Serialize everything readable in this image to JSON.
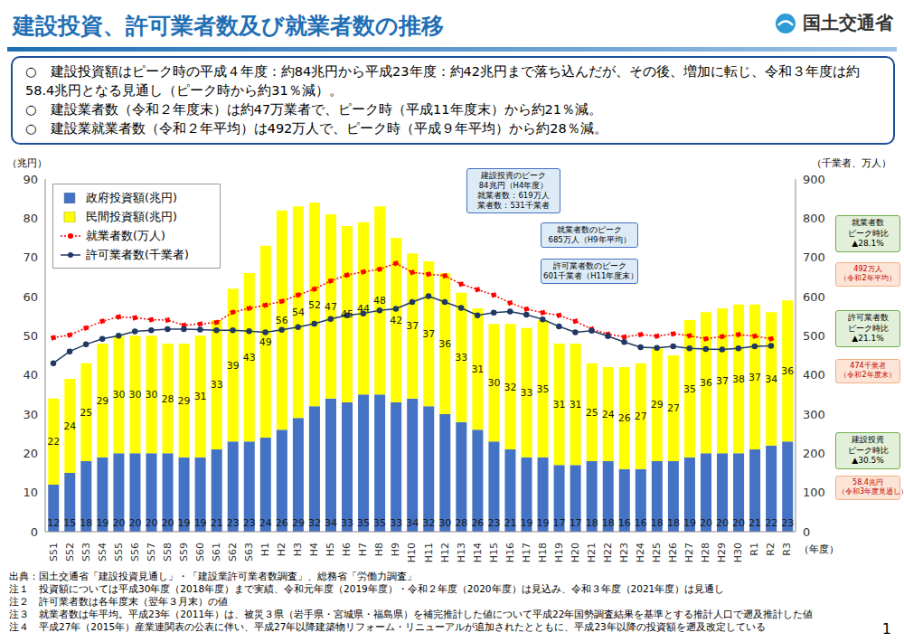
{
  "page": {
    "logo": "国土交通省",
    "summary": [
      "○　建設投資額はピーク時の平成４年度：約84兆円から平成23年度：約42兆円まで落ち込んだが、その後、増加に転じ、令和３年度は約58.4兆円となる見通し（ピーク時から約31％減）。",
      "○　建設業者数（令和２年度末）は約47万業者で、ピーク時（平成11年度末）から約21％減。",
      "○　建設業就業者数（令和２年平均）は492万人で、ピーク時（平成９年平均）から約28％減。"
    ],
    "notes": [
      "出典：国土交通省「建設投資見通し」・「建設業許可業者数調査」、総務省「労働力調査」",
      "注１　投資額については平成30年度（2018年度）まで実績、令和元年度（2019年度）・令和２年度（2020年度）は見込み、令和３年度（2021年度）は見通し",
      "注２　許可業者数は各年度末（翌年３月末）の値",
      "注３　就業者数は年平均。平成23年（2011年）は、被災３県（岩手県・宮城県・福島県）を補完推計した値について平成22年国勢調査結果を基準とする推計人口で遡及推計した値",
      "注４　平成27年（2015年）産業連関表の公表に伴い、平成27年以降建築物リフォーム・リニューアルが追加されたとともに、平成23年以降の投資額を遡及改定している"
    ],
    "page_number": "1"
  },
  "chart_data": {
    "type": "bar",
    "title": "建設投資、許可業者数及び就業者数の推移",
    "y_label": "（兆円）",
    "y2_label": "（千業者、万人）",
    "x_label": "（年度）",
    "stacked": true,
    "grid": false,
    "legend": "upper left",
    "categories": [
      "S51",
      "S52",
      "S53",
      "S54",
      "S55",
      "S56",
      "S57",
      "S58",
      "S59",
      "S60",
      "S61",
      "S62",
      "S63",
      "H1",
      "H2",
      "H3",
      "H4",
      "H5",
      "H6",
      "H7",
      "H8",
      "H9",
      "H10",
      "H11",
      "H12",
      "H13",
      "H14",
      "H15",
      "H16",
      "H17",
      "H18",
      "H19",
      "H20",
      "H21",
      "H22",
      "H23",
      "H24",
      "H25",
      "H26",
      "H27",
      "H28",
      "H29",
      "H30",
      "R1",
      "R2",
      "R3"
    ],
    "ylim": [
      0,
      90
    ],
    "yticks": [
      0,
      10,
      20,
      30,
      40,
      50,
      60,
      70,
      80,
      90
    ],
    "y2lim": [
      0,
      900
    ],
    "y2ticks": [
      0,
      100,
      200,
      300,
      400,
      500,
      600,
      700,
      800,
      900
    ],
    "series": [
      {
        "name": "政府投資額(兆円)",
        "type": "bar",
        "color": "#4472c4",
        "data_labels": true,
        "values": [
          12,
          15,
          18,
          19,
          20,
          20,
          20,
          20,
          19,
          19,
          21,
          23,
          23,
          24,
          26,
          29,
          32,
          34,
          33,
          35,
          35,
          33,
          34,
          32,
          30,
          28,
          26,
          23,
          21,
          19,
          19,
          17,
          17,
          18,
          18,
          16,
          16,
          18,
          18,
          19,
          20,
          20,
          20,
          21,
          22,
          23
        ]
      },
      {
        "name": "民間投資額(兆円)",
        "type": "bar",
        "color": "#ffff00",
        "data_labels": true,
        "values": [
          22,
          24,
          25,
          29,
          30,
          30,
          30,
          28,
          29,
          31,
          33,
          39,
          43,
          49,
          56,
          54,
          52,
          47,
          45,
          44,
          48,
          42,
          37,
          37,
          36,
          33,
          31,
          30,
          32,
          33,
          35,
          31,
          31,
          25,
          24,
          26,
          27,
          29,
          27,
          35,
          36,
          37,
          38,
          37,
          34,
          36
        ]
      },
      {
        "name": "就業者数(万人)",
        "type": "line",
        "axis": "y2",
        "color": "#ff0000",
        "marker": "circle",
        "line_style": "dotted",
        "data_labels": false,
        "values": [
          495,
          502,
          520,
          537,
          548,
          546,
          541,
          540,
          527,
          530,
          534,
          560,
          570,
          578,
          588,
          604,
          619,
          640,
          655,
          663,
          670,
          685,
          662,
          657,
          653,
          632,
          618,
          604,
          584,
          568,
          559,
          552,
          537,
          517,
          504,
          497,
          503,
          499,
          505,
          500,
          492,
          498,
          503,
          499,
          492,
          null
        ]
      },
      {
        "name": "許可業者数(千業者)",
        "type": "line",
        "axis": "y2",
        "color": "#1f3864",
        "marker": "circle",
        "line_style": "solid",
        "data_labels": false,
        "values": [
          430,
          460,
          478,
          492,
          500,
          511,
          514,
          517,
          517,
          516,
          514,
          514,
          512,
          509,
          515,
          522,
          531,
          543,
          552,
          557,
          565,
          569,
          586,
          601,
          586,
          571,
          552,
          559,
          562,
          554,
          542,
          524,
          509,
          513,
          499,
          484,
          471,
          469,
          473,
          468,
          466,
          465,
          468,
          473,
          474,
          null
        ]
      }
    ],
    "annotations": [
      {
        "text": [
          "建設投資のピーク",
          "84兆円（H4年度）",
          "就業者数：619万人",
          "業者数：531千業者"
        ]
      },
      {
        "text": [
          "就業者数のピーク",
          "685万人（H9年平均）"
        ]
      },
      {
        "text": [
          "許可業者数のピーク",
          "601千業者（H11年度末）"
        ]
      },
      {
        "text": [
          "就業者数",
          "ピーク時比",
          "▲28.1%"
        ]
      },
      {
        "text": [
          "492万人",
          "（令和2年平均）"
        ]
      },
      {
        "text": [
          "許可業者数",
          "ピーク時比",
          "▲21.1%"
        ]
      },
      {
        "text": [
          "474千業者",
          "（令和2年度末）"
        ]
      },
      {
        "text": [
          "建設投資",
          "ピーク時比",
          "▲30.5%"
        ]
      },
      {
        "text": [
          "58.4兆円",
          "（令和3年度見通し）"
        ]
      }
    ]
  }
}
